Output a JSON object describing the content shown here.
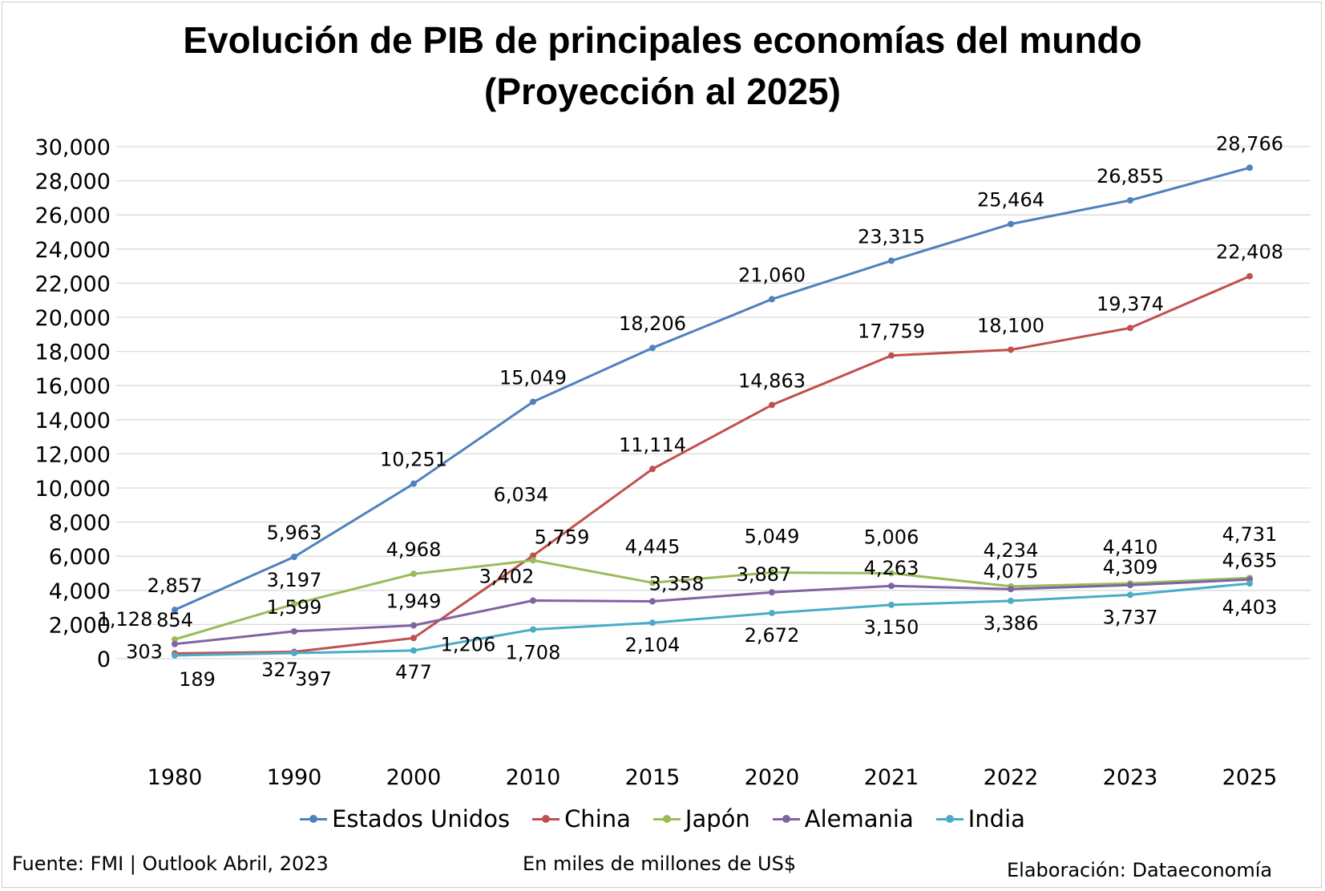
{
  "chart_data": {
    "type": "line",
    "title_line1": "Evolución de PIB de principales economías del mundo",
    "title_line2": "(Proyección al 2025)",
    "categories": [
      "1980",
      "1990",
      "2000",
      "2010",
      "2015",
      "2020",
      "2021",
      "2022",
      "2023",
      "2025"
    ],
    "ylim": [
      0,
      30000
    ],
    "y_ticks": [
      "0",
      "2,000",
      "4,000",
      "6,000",
      "8,000",
      "10,000",
      "12,000",
      "14,000",
      "16,000",
      "18,000",
      "20,000",
      "22,000",
      "24,000",
      "26,000",
      "28,000",
      "30,000"
    ],
    "grid": true,
    "legend_position": "bottom",
    "series": [
      {
        "name": "Estados Unidos",
        "color": "#4F81BD",
        "values": [
          2857,
          5963,
          10251,
          15049,
          18206,
          21060,
          23315,
          25464,
          26855,
          28766
        ],
        "labels": [
          "2,857",
          "5,963",
          "10,251",
          "15,049",
          "18,206",
          "21,060",
          "23,315",
          "25,464",
          "26,855",
          "28,766"
        ]
      },
      {
        "name": "China",
        "color": "#C0504D",
        "values": [
          303,
          397,
          1206,
          6034,
          11114,
          14863,
          17759,
          18100,
          19374,
          22408
        ],
        "labels": [
          "303",
          "397",
          "1,206",
          "6,034",
          "11,114",
          "14,863",
          "17,759",
          "18,100",
          "19,374",
          "22,408"
        ]
      },
      {
        "name": "Japón",
        "color": "#9BBB59",
        "values": [
          1128,
          3197,
          4968,
          5759,
          4445,
          5049,
          5006,
          4234,
          4410,
          4731
        ],
        "labels": [
          "1,128",
          "3,197",
          "4,968",
          "5,759",
          "4,445",
          "5,049",
          "5,006",
          "4,234",
          "4,410",
          "4,731"
        ]
      },
      {
        "name": "Alemania",
        "color": "#8064A2",
        "values": [
          854,
          1599,
          1949,
          3402,
          3358,
          3887,
          4263,
          4075,
          4309,
          4635
        ],
        "labels": [
          "854",
          "1,599",
          "1,949",
          "3,402",
          "3,358",
          "3,887",
          "4,263",
          "4,075",
          "4,309",
          "4,635"
        ]
      },
      {
        "name": "India",
        "color": "#4BACC6",
        "values": [
          189,
          327,
          477,
          1708,
          2104,
          2672,
          3150,
          3386,
          3737,
          4403
        ],
        "labels": [
          "189",
          "327",
          "477",
          "1,708",
          "2,104",
          "2,672",
          "3,150",
          "3,386",
          "3,737",
          "4,403"
        ]
      }
    ]
  },
  "footer": {
    "source": "Fuente: FMI | Outlook Abril, 2023",
    "units": "En miles de millones de US$",
    "credit": "Elaboración: Dataeconomía"
  }
}
